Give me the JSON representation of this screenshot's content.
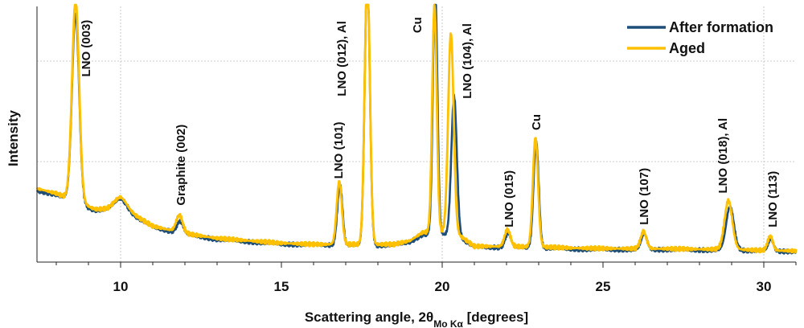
{
  "chart_data": {
    "type": "line",
    "xlabel": {
      "main": "Scattering angle, 2θ",
      "sub": "Mo Kα",
      "unit": " [degrees]"
    },
    "ylabel": "Intensity",
    "xlim": [
      7.4,
      31.0
    ],
    "ylim": [
      0,
      100
    ],
    "x_ticks": [
      10,
      15,
      20,
      25,
      30
    ],
    "legend": {
      "placement": "top-right"
    },
    "grid": "dotted horizontal and vertical at 10, 20, 30",
    "series": [
      {
        "name": "After formation",
        "color": "#1f4e79",
        "baseline": [
          [
            7.4,
            26
          ],
          [
            8.0,
            24.5
          ],
          [
            9.2,
            18
          ],
          [
            9.6,
            18
          ],
          [
            10.0,
            19
          ],
          [
            11.0,
            11
          ],
          [
            12.0,
            8
          ],
          [
            13.0,
            6
          ],
          [
            14.0,
            5
          ],
          [
            15.0,
            4
          ],
          [
            16.0,
            3.8
          ],
          [
            17.0,
            3.5
          ],
          [
            18.5,
            3.5
          ],
          [
            19.0,
            5
          ],
          [
            19.4,
            8
          ],
          [
            20.4,
            8
          ],
          [
            21.0,
            2.8
          ],
          [
            23.0,
            2.5
          ],
          [
            24.0,
            2
          ],
          [
            25.0,
            1.8
          ],
          [
            27.0,
            1.8
          ],
          [
            28.0,
            1.6
          ],
          [
            29.0,
            1.6
          ],
          [
            30.0,
            1.2
          ],
          [
            31.0,
            1
          ]
        ],
        "peaks": [
          {
            "center": 8.6,
            "width": 0.11,
            "height": 78,
            "label": "LNO (003)"
          },
          {
            "center": 10.0,
            "width": 0.2,
            "height": 4,
            "label": ""
          },
          {
            "center": 11.85,
            "width": 0.1,
            "height": 5,
            "label": "Graphite (002)"
          },
          {
            "center": 16.82,
            "width": 0.08,
            "height": 25,
            "label": "LNO (101)"
          },
          {
            "center": 17.67,
            "width": 0.08,
            "height": 112,
            "label": "LNO (012), Al"
          },
          {
            "center": 19.78,
            "width": 0.07,
            "height": 103,
            "label": "Cu"
          },
          {
            "center": 20.37,
            "width": 0.085,
            "height": 57,
            "label": "LNO (104), Al"
          },
          {
            "center": 22.05,
            "width": 0.09,
            "height": 6,
            "label": "LNO (015)"
          },
          {
            "center": 22.92,
            "width": 0.08,
            "height": 44,
            "label": "Cu"
          },
          {
            "center": 26.28,
            "width": 0.09,
            "height": 6.5,
            "label": "LNO (107)"
          },
          {
            "center": 28.95,
            "width": 0.12,
            "height": 18,
            "label": "LNO (018), Al"
          },
          {
            "center": 30.22,
            "width": 0.08,
            "height": 5,
            "label": "LNO (113)"
          }
        ]
      },
      {
        "name": "Aged",
        "color": "#ffc000",
        "baseline": [
          [
            7.4,
            27
          ],
          [
            8.0,
            25
          ],
          [
            9.2,
            18.5
          ],
          [
            9.6,
            18.5
          ],
          [
            10.0,
            19.5
          ],
          [
            11.0,
            11.5
          ],
          [
            12.0,
            8.5
          ],
          [
            13.0,
            6.5
          ],
          [
            14.0,
            5.5
          ],
          [
            15.0,
            4.5
          ],
          [
            16.0,
            4
          ],
          [
            17.0,
            4
          ],
          [
            18.5,
            4
          ],
          [
            19.0,
            5.5
          ],
          [
            19.4,
            9
          ],
          [
            20.4,
            9
          ],
          [
            21.0,
            3.2
          ],
          [
            23.0,
            3
          ],
          [
            24.0,
            2.5
          ],
          [
            25.0,
            2.3
          ],
          [
            27.0,
            2.2
          ],
          [
            28.0,
            2
          ],
          [
            29.0,
            2
          ],
          [
            30.0,
            1.5
          ],
          [
            31.0,
            1.3
          ]
        ],
        "peaks": [
          {
            "center": 8.6,
            "width": 0.11,
            "height": 83,
            "label": "LNO (003)"
          },
          {
            "center": 10.0,
            "width": 0.2,
            "height": 4,
            "label": ""
          },
          {
            "center": 11.83,
            "width": 0.1,
            "height": 7,
            "label": "Graphite (002)"
          },
          {
            "center": 16.8,
            "width": 0.08,
            "height": 26,
            "label": "LNO (101)"
          },
          {
            "center": 17.67,
            "width": 0.08,
            "height": 112,
            "label": "LNO (012), Al"
          },
          {
            "center": 19.76,
            "width": 0.07,
            "height": 94,
            "label": "Cu"
          },
          {
            "center": 20.27,
            "width": 0.085,
            "height": 82,
            "label": "LNO (104), Al"
          },
          {
            "center": 22.03,
            "width": 0.09,
            "height": 7,
            "label": "LNO (015)"
          },
          {
            "center": 22.9,
            "width": 0.08,
            "height": 45,
            "label": "Cu"
          },
          {
            "center": 26.26,
            "width": 0.09,
            "height": 7,
            "label": "LNO (107)"
          },
          {
            "center": 28.9,
            "width": 0.12,
            "height": 20,
            "label": "LNO (018), Al"
          },
          {
            "center": 30.2,
            "width": 0.08,
            "height": 6,
            "label": "LNO (113)"
          }
        ]
      }
    ],
    "annotations": [
      {
        "text": "LNO (003)",
        "x": 8.95,
        "y": 73
      },
      {
        "text": "Graphite (002)",
        "x": 11.9,
        "y": 20
      },
      {
        "text": "LNO (101)",
        "x": 16.8,
        "y": 31
      },
      {
        "text": "LNO (012), Al",
        "x": 16.9,
        "y": 65
      },
      {
        "text": "Cu",
        "x": 19.25,
        "y": 91
      },
      {
        "text": "LNO (104), Al",
        "x": 20.8,
        "y": 64
      },
      {
        "text": "LNO (015)",
        "x": 22.1,
        "y": 11
      },
      {
        "text": "Cu",
        "x": 22.95,
        "y": 51
      },
      {
        "text": "LNO (107)",
        "x": 26.3,
        "y": 12
      },
      {
        "text": "LNO (018), Al",
        "x": 28.75,
        "y": 25
      },
      {
        "text": "LNO (113)",
        "x": 30.3,
        "y": 11
      }
    ]
  }
}
